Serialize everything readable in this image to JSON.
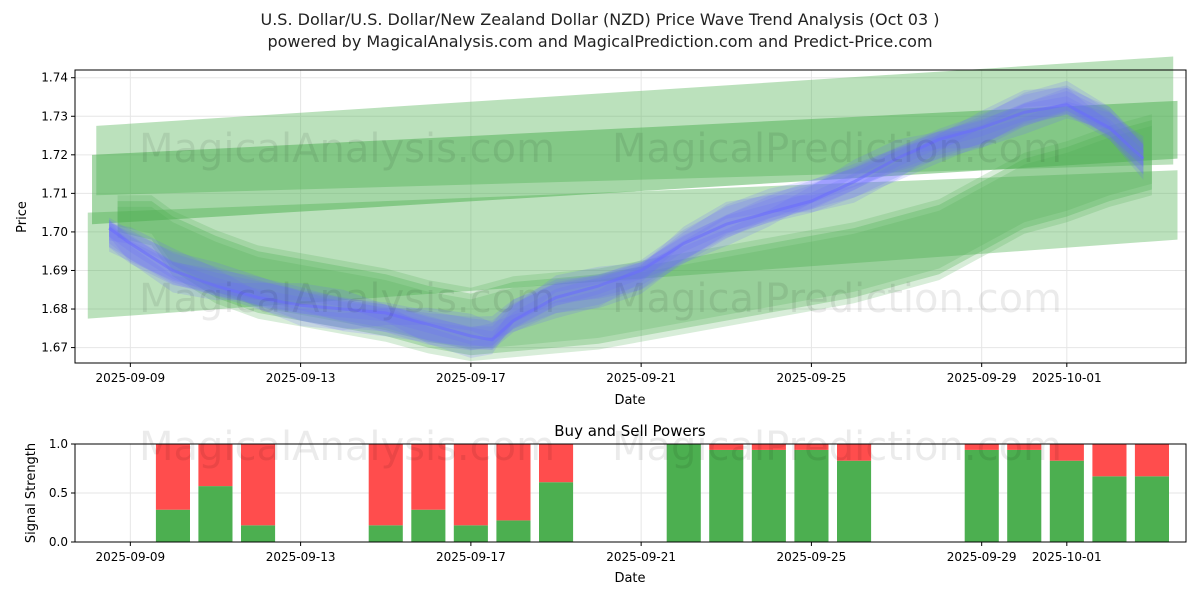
{
  "title_line1": "U.S. Dollar/U.S. Dollar/New Zealand Dollar (NZD) Price Wave Trend Analysis (Oct 03 )",
  "title_line2": "powered by MagicalAnalysis.com and MagicalPrediction.com and Predict-Price.com",
  "watermarks": [
    "MagicalAnalysis.com",
    "MagicalPrediction.com"
  ],
  "colors": {
    "green": "#4caf50",
    "blue": "#6a6aff",
    "red": "#ff4d4d",
    "grid": "#e6e6e6"
  },
  "chart_data": [
    {
      "type": "line",
      "name": "price-wave-chart",
      "title": "",
      "xlabel": "Date",
      "ylabel": "Price",
      "ylim": [
        1.666,
        1.742
      ],
      "xlim_days": [
        -1.3,
        24.8
      ],
      "x_ticks": [
        {
          "day": 0,
          "label": "2025-09-09"
        },
        {
          "day": 4,
          "label": "2025-09-13"
        },
        {
          "day": 8,
          "label": "2025-09-17"
        },
        {
          "day": 12,
          "label": "2025-09-21"
        },
        {
          "day": 16,
          "label": "2025-09-25"
        },
        {
          "day": 20,
          "label": "2025-09-29"
        },
        {
          "day": 22,
          "label": "2025-10-01"
        }
      ],
      "y_ticks": [
        1.67,
        1.68,
        1.69,
        1.7,
        1.71,
        1.72,
        1.73,
        1.74
      ],
      "y_tick_labels": [
        "1.67",
        "1.68",
        "1.69",
        "1.70",
        "1.71",
        "1.72",
        "1.73",
        "1.74"
      ],
      "grid": true,
      "green_bands": [
        {
          "x": [
            -0.8,
            24.5
          ],
          "upper": [
            1.7275,
            1.7455
          ],
          "lower": [
            1.7095,
            1.7175
          ],
          "opacity": 0.38
        },
        {
          "x": [
            -0.9,
            24.6
          ],
          "upper": [
            1.72,
            1.734
          ],
          "lower": [
            1.702,
            1.719
          ],
          "opacity": 0.5
        },
        {
          "x": [
            -1.0,
            24.6
          ],
          "upper": [
            1.705,
            1.716
          ],
          "lower": [
            1.6775,
            1.698
          ],
          "opacity": 0.38
        }
      ],
      "green_wave": {
        "x": [
          -0.3,
          0.5,
          1,
          2,
          3,
          4,
          5,
          6,
          7,
          8,
          9,
          10,
          11,
          12,
          13,
          14,
          15,
          16,
          17,
          18,
          19,
          20,
          21,
          22,
          23,
          24
        ],
        "y": [
          1.704,
          1.703,
          1.697,
          1.691,
          1.687,
          1.685,
          1.683,
          1.681,
          1.678,
          1.676,
          1.678,
          1.679,
          1.68,
          1.682,
          1.684,
          1.686,
          1.688,
          1.69,
          1.692,
          1.695,
          1.698,
          1.704,
          1.71,
          1.713,
          1.717,
          1.72
        ],
        "halfwidth": [
          0.004,
          0.005,
          0.007,
          0.008,
          0.008,
          0.008,
          0.008,
          0.008,
          0.008,
          0.008,
          0.009,
          0.009,
          0.009,
          0.009,
          0.009,
          0.009,
          0.009,
          0.009,
          0.009,
          0.009,
          0.009,
          0.009,
          0.009,
          0.009,
          0.009,
          0.009
        ]
      },
      "price_series": {
        "name": "price",
        "x": [
          -0.5,
          0,
          1,
          2,
          3,
          4,
          5,
          6,
          7,
          8,
          8.5,
          9,
          10,
          11,
          12,
          13,
          14,
          15,
          16,
          17,
          18,
          19,
          20,
          21,
          22,
          23,
          23.8
        ],
        "y": [
          1.701,
          1.697,
          1.69,
          1.686,
          1.683,
          1.681,
          1.68,
          1.679,
          1.676,
          1.673,
          1.672,
          1.677,
          1.683,
          1.686,
          1.69,
          1.697,
          1.702,
          1.705,
          1.708,
          1.713,
          1.719,
          1.724,
          1.727,
          1.731,
          1.733,
          1.727,
          1.719
        ]
      },
      "blue_variants": 7
    },
    {
      "type": "bar",
      "name": "buy-sell-powers-chart",
      "title": "Buy and Sell Powers",
      "xlabel": "Date",
      "ylabel": "Signal Strength",
      "ylim": [
        0,
        1.0
      ],
      "y_ticks": [
        0,
        0.5,
        1.0
      ],
      "y_tick_labels": [
        "0.0",
        "0.5",
        "1.0"
      ],
      "x_ticks": [
        {
          "day": 0,
          "label": "2025-09-09"
        },
        {
          "day": 4,
          "label": "2025-09-13"
        },
        {
          "day": 8,
          "label": "2025-09-17"
        },
        {
          "day": 12,
          "label": "2025-09-21"
        },
        {
          "day": 16,
          "label": "2025-09-25"
        },
        {
          "day": 20,
          "label": "2025-09-29"
        },
        {
          "day": 22,
          "label": "2025-10-01"
        }
      ],
      "xlim_days": [
        -1.3,
        24.8
      ],
      "grid": true,
      "days": [
        1,
        2,
        3,
        6,
        7,
        8,
        9,
        10,
        13,
        14,
        15,
        16,
        17,
        20,
        21,
        22,
        23,
        24
      ],
      "series": [
        {
          "name": "Buy",
          "color": "#4caf50",
          "values": [
            0.33,
            0.57,
            0.17,
            0.17,
            0.33,
            0.17,
            0.22,
            0.61,
            1.0,
            0.94,
            0.94,
            0.94,
            0.83,
            0.94,
            0.94,
            0.83,
            0.67,
            0.67
          ]
        },
        {
          "name": "Sell",
          "color": "#ff4d4d",
          "values": [
            0.67,
            0.43,
            0.83,
            0.83,
            0.67,
            0.83,
            0.78,
            0.39,
            0.0,
            0.06,
            0.06,
            0.06,
            0.17,
            0.06,
            0.06,
            0.17,
            0.33,
            0.33
          ]
        }
      ]
    }
  ]
}
